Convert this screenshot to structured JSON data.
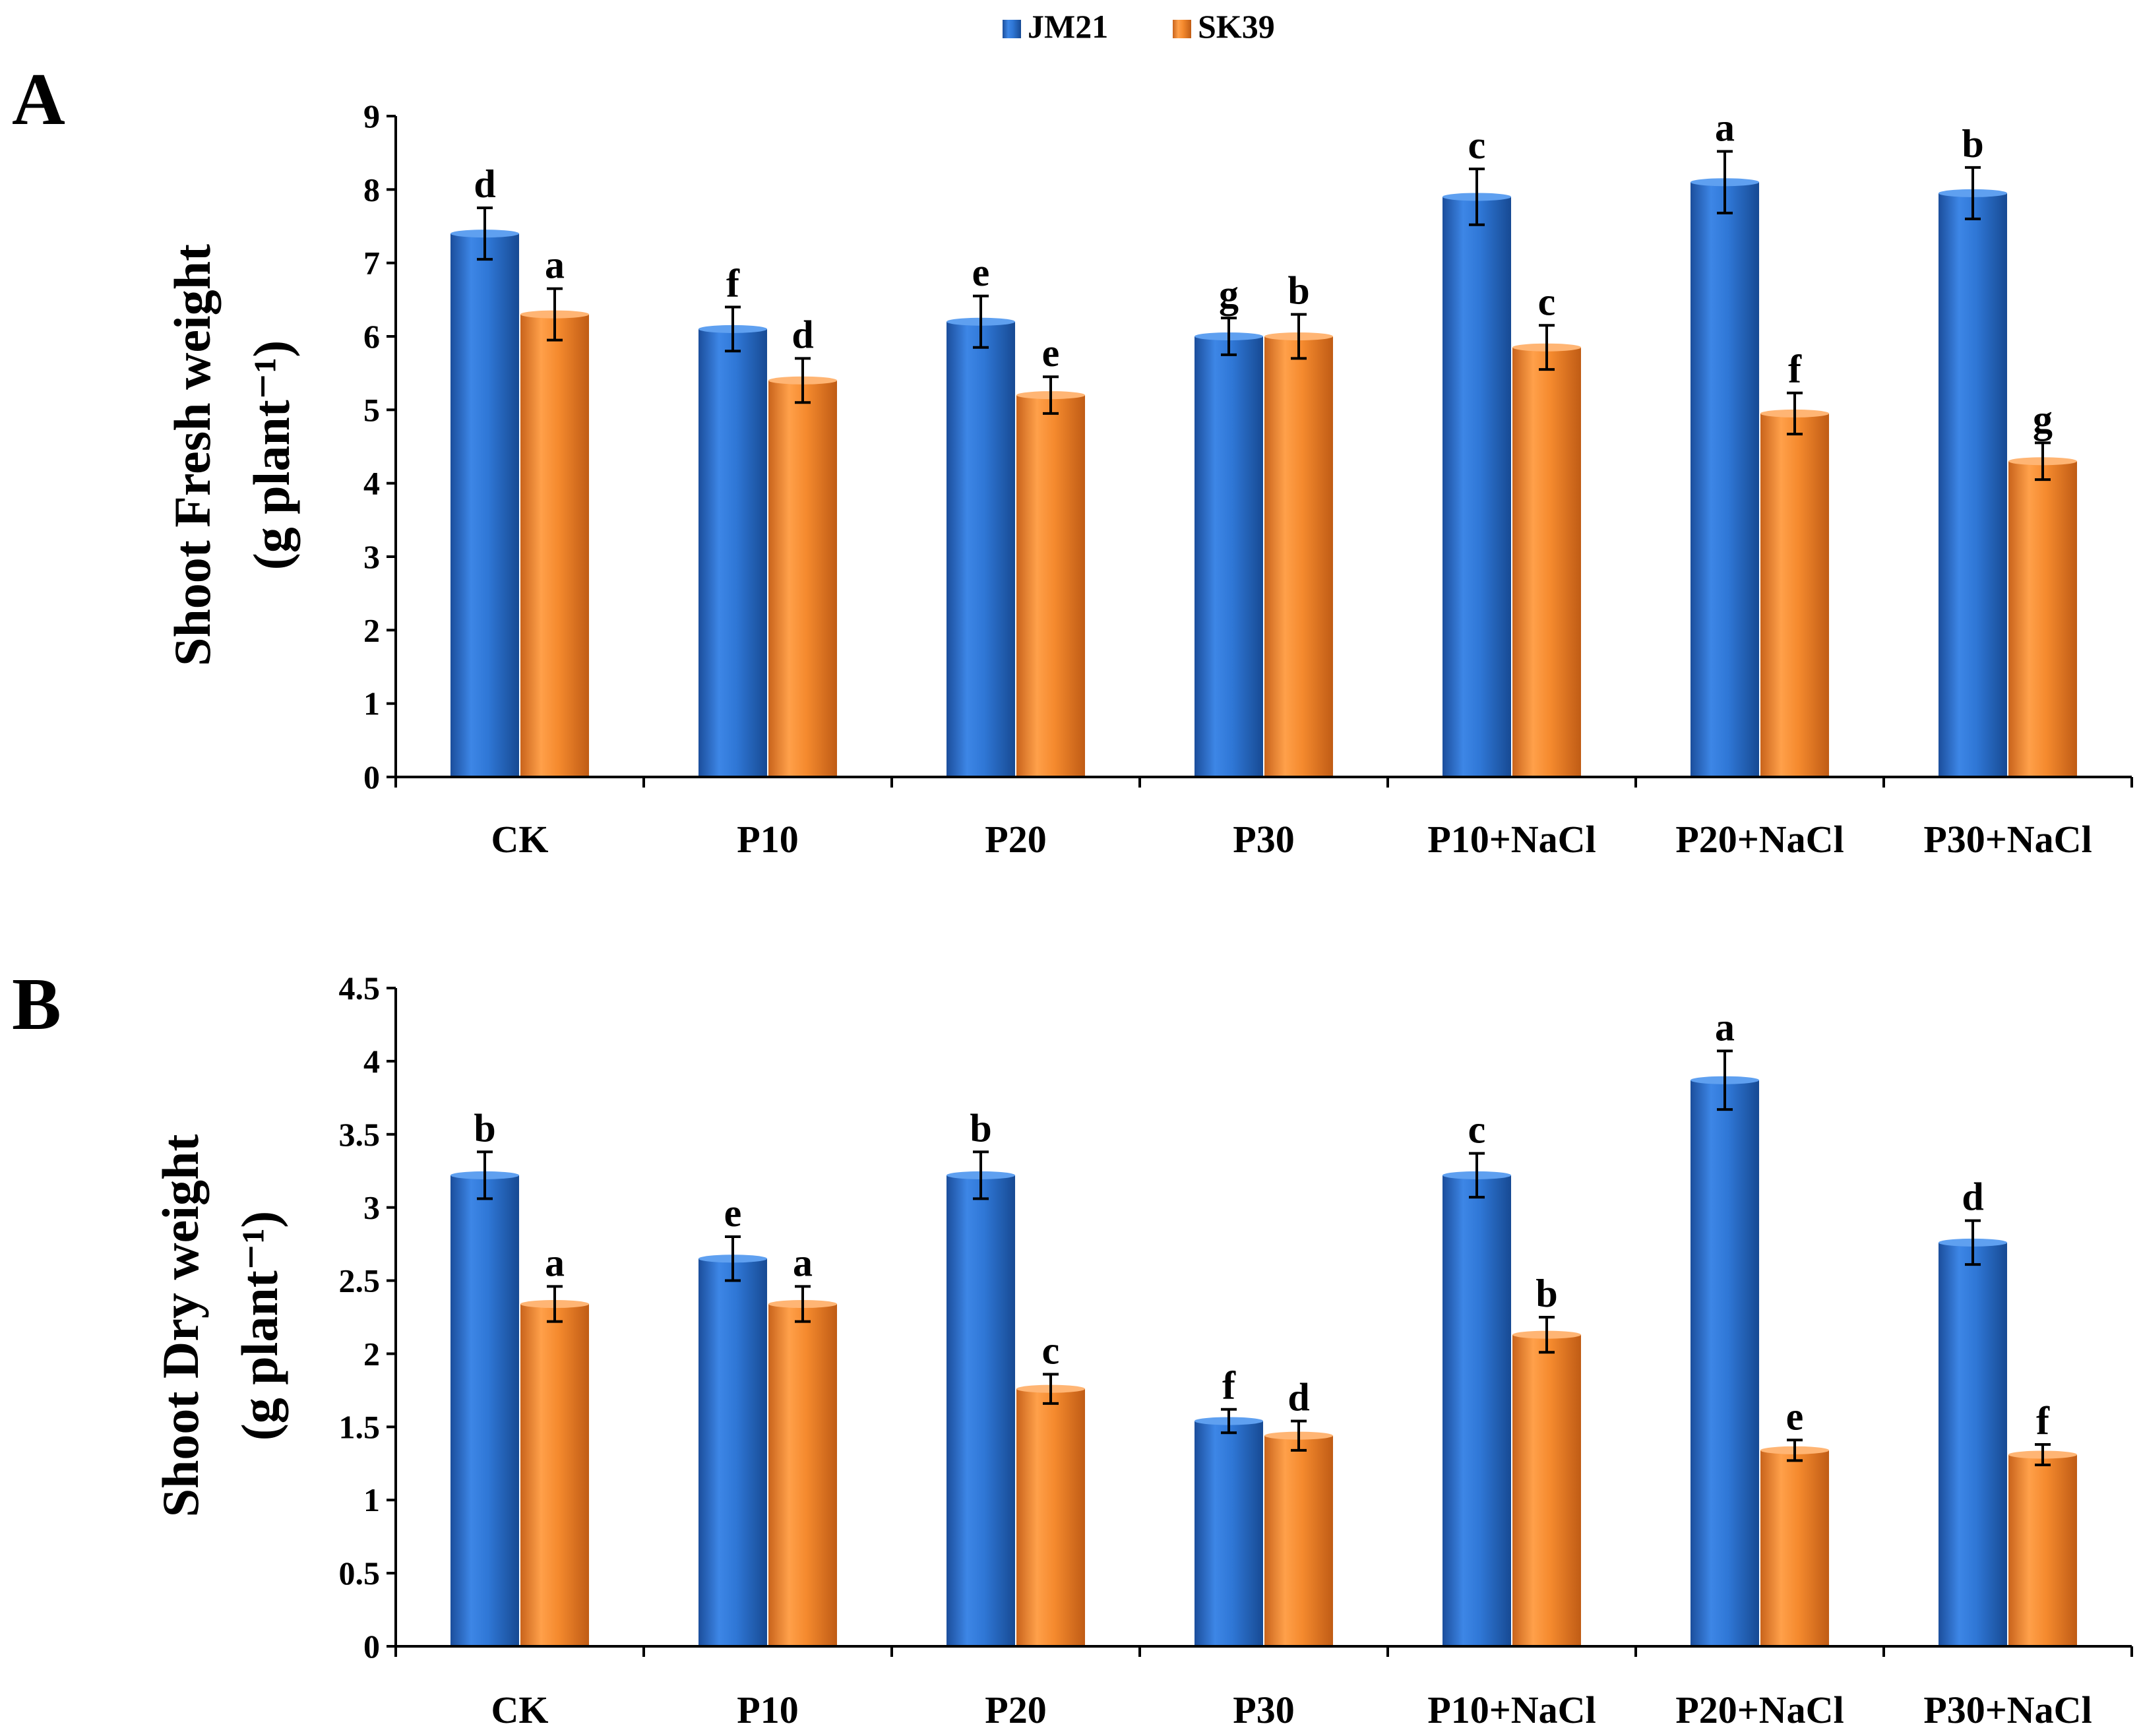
{
  "legend": {
    "items": [
      {
        "name": "JM21",
        "color": "#2a6fcf"
      },
      {
        "name": "SK39",
        "color": "#f58a2e"
      }
    ]
  },
  "chart_data": [
    {
      "type": "bar",
      "panel_label": "A",
      "title": "",
      "xlabel": "",
      "ylabel_line1": "Shoot Fresh weight",
      "ylabel_line2": "(g plant⁻¹)",
      "ylim": [
        0,
        9
      ],
      "ytick_values": [
        0,
        1,
        2,
        3,
        4,
        5,
        6,
        7,
        8,
        9
      ],
      "ytick_labels": [
        "0",
        "1",
        "2",
        "3",
        "4",
        "5",
        "6",
        "7",
        "8",
        "9"
      ],
      "categories": [
        "CK",
        "P10",
        "P20",
        "P30",
        "P10+NaCl",
        "P20+NaCl",
        "P30+NaCl"
      ],
      "series": [
        {
          "name": "JM21",
          "color": "#2a6fcf",
          "values": [
            7.4,
            6.1,
            6.2,
            6.0,
            7.9,
            8.1,
            7.95
          ],
          "errors": [
            0.35,
            0.3,
            0.35,
            0.25,
            0.38,
            0.42,
            0.35
          ],
          "letters": [
            "d",
            "f",
            "e",
            "g",
            "c",
            "a",
            "b"
          ]
        },
        {
          "name": "SK39",
          "color": "#f58a2e",
          "values": [
            6.3,
            5.4,
            5.2,
            6.0,
            5.85,
            4.95,
            4.3
          ],
          "errors": [
            0.35,
            0.3,
            0.25,
            0.3,
            0.3,
            0.28,
            0.25
          ],
          "letters": [
            "a",
            "d",
            "e",
            "b",
            "c",
            "f",
            "g"
          ]
        }
      ]
    },
    {
      "type": "bar",
      "panel_label": "B",
      "title": "",
      "xlabel": "",
      "ylabel_line1": "Shoot Dry weight",
      "ylabel_line2": "(g plant⁻¹)",
      "ylim": [
        0,
        4.5
      ],
      "ytick_values": [
        0,
        0.5,
        1,
        1.5,
        2,
        2.5,
        3,
        3.5,
        4,
        4.5
      ],
      "ytick_labels": [
        "0",
        "0.5",
        "1",
        "1.5",
        "2",
        "2.5",
        "3",
        "3.5",
        "4",
        "4.5"
      ],
      "categories": [
        "CK",
        "P10",
        "P20",
        "P30",
        "P10+NaCl",
        "P20+NaCl",
        "P30+NaCl"
      ],
      "series": [
        {
          "name": "JM21",
          "color": "#2a6fcf",
          "values": [
            3.22,
            2.65,
            3.22,
            1.54,
            3.22,
            3.87,
            2.76
          ],
          "errors": [
            0.16,
            0.15,
            0.16,
            0.08,
            0.15,
            0.2,
            0.15
          ],
          "letters": [
            "b",
            "e",
            "b",
            "f",
            "c",
            "a",
            "d"
          ]
        },
        {
          "name": "SK39",
          "color": "#f58a2e",
          "values": [
            2.34,
            2.34,
            1.76,
            1.44,
            2.13,
            1.34,
            1.31
          ],
          "errors": [
            0.12,
            0.12,
            0.1,
            0.1,
            0.12,
            0.07,
            0.07
          ],
          "letters": [
            "a",
            "a",
            "c",
            "d",
            "b",
            "e",
            "f"
          ]
        }
      ]
    }
  ]
}
